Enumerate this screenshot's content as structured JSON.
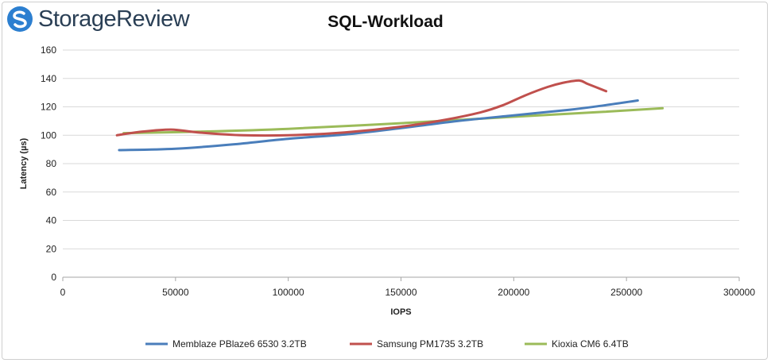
{
  "brand": {
    "name": "StorageReview",
    "logo_color": "#2c7fd0"
  },
  "chart_data": {
    "type": "line",
    "title": "SQL-Workload",
    "xlabel": "IOPS",
    "ylabel": "Latency (µs)",
    "xlim": [
      0,
      300000
    ],
    "ylim": [
      0,
      160
    ],
    "x_ticks": [
      0,
      50000,
      100000,
      150000,
      200000,
      250000,
      300000
    ],
    "y_ticks": [
      0,
      20,
      40,
      60,
      80,
      100,
      120,
      140,
      160
    ],
    "grid": "horizontal",
    "legend_position": "bottom",
    "series": [
      {
        "name": "Memblaze PBlaze6 6530 3.2TB",
        "color": "#4a7ebb",
        "points": [
          [
            25000,
            89.5
          ],
          [
            50000,
            90.5
          ],
          [
            75000,
            93.5
          ],
          [
            100000,
            97.5
          ],
          [
            125000,
            100.5
          ],
          [
            150000,
            105
          ],
          [
            175000,
            110
          ],
          [
            200000,
            114
          ],
          [
            225000,
            118
          ],
          [
            240000,
            121
          ],
          [
            255000,
            124.5
          ]
        ]
      },
      {
        "name": "Samsung PM1735 3.2TB",
        "color": "#c0504d",
        "points": [
          [
            24000,
            100
          ],
          [
            35000,
            102.5
          ],
          [
            48000,
            104
          ],
          [
            60000,
            102
          ],
          [
            80000,
            100
          ],
          [
            100000,
            100
          ],
          [
            125000,
            102
          ],
          [
            150000,
            106
          ],
          [
            170000,
            111
          ],
          [
            185000,
            116
          ],
          [
            195000,
            121
          ],
          [
            205000,
            128
          ],
          [
            215000,
            134
          ],
          [
            222000,
            137
          ],
          [
            229000,
            138.5
          ],
          [
            233000,
            136
          ],
          [
            241000,
            131
          ]
        ]
      },
      {
        "name": "Kioxia CM6 6.4TB",
        "color": "#9bbb59",
        "points": [
          [
            27000,
            101.5
          ],
          [
            60000,
            102.5
          ],
          [
            100000,
            104.5
          ],
          [
            150000,
            108.5
          ],
          [
            200000,
            113
          ],
          [
            240000,
            116.5
          ],
          [
            266000,
            119
          ]
        ]
      }
    ]
  }
}
